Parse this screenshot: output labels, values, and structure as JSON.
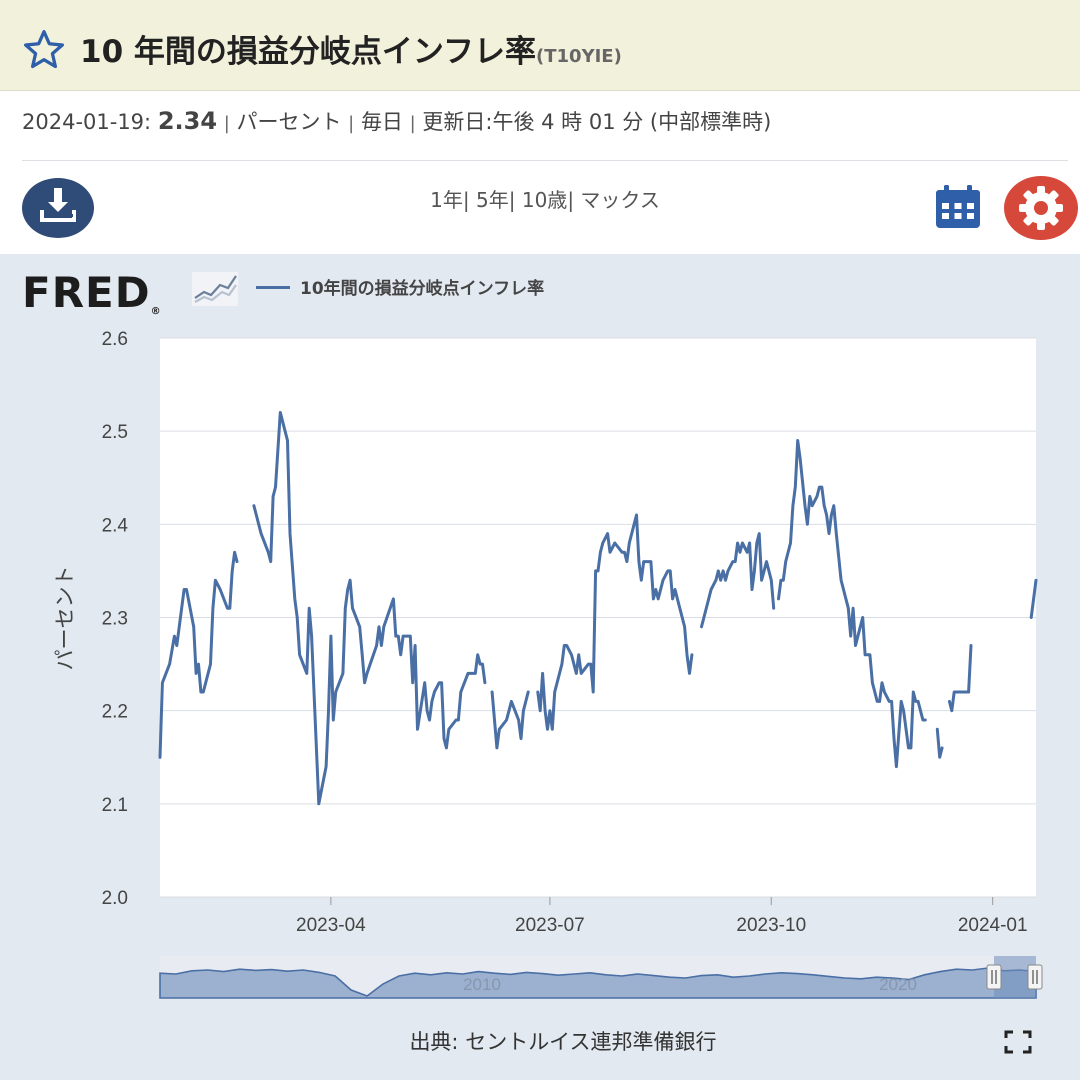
{
  "header": {
    "title": "10 年間の損益分岐点インフレ率",
    "series_code": "(T10YIE)"
  },
  "meta": {
    "date": "2024-01-19:",
    "value": "2.34",
    "units": "パーセント",
    "frequency": "毎日",
    "updated": "更新日:午後 4 時 01 分 (中部標準時)"
  },
  "toolbar": {
    "ranges": [
      "1年",
      "5年",
      "10歳",
      "マックス"
    ]
  },
  "chart_legend": "10年間の損益分岐点インフレ率",
  "source_text": "出典: セントルイス連邦準備銀行",
  "chart_data": {
    "type": "line",
    "ylabel": "パーセント",
    "ylim": [
      2.0,
      2.6
    ],
    "yticks": [
      "2.6",
      "2.5",
      "2.4",
      "2.3",
      "2.2",
      "2.1",
      "2.0"
    ],
    "xticks": [
      "2023-04",
      "2023-07",
      "2023-10",
      "2024-01"
    ],
    "x_range": [
      "2023-01-20",
      "2024-01-19"
    ],
    "grid": true,
    "series": [
      {
        "name": "10年間の損益分岐点インフレ率",
        "color": "#4a6fa5",
        "points": [
          [
            "2023-01-20",
            2.15
          ],
          [
            "2023-01-21",
            2.23
          ],
          [
            "2023-01-24",
            2.25
          ],
          [
            "2023-01-26",
            2.28
          ],
          [
            "2023-01-27",
            2.27
          ],
          [
            "2023-01-30",
            2.33
          ],
          [
            "2023-01-31",
            2.33
          ],
          [
            "2023-02-03",
            2.29
          ],
          [
            "2023-02-04",
            2.24
          ],
          [
            "2023-02-05",
            2.25
          ],
          [
            "2023-02-06",
            2.22
          ],
          [
            "2023-02-07",
            2.22
          ],
          [
            "2023-02-10",
            2.25
          ],
          [
            "2023-02-11",
            2.31
          ],
          [
            "2023-02-12",
            2.34
          ],
          [
            "2023-02-14",
            2.33
          ],
          [
            "2023-02-17",
            2.31
          ],
          [
            "2023-02-18",
            2.31
          ],
          [
            "2023-02-19",
            2.35
          ],
          [
            "2023-02-20",
            2.37
          ],
          [
            "2023-02-21",
            2.36
          ],
          null,
          [
            "2023-02-28",
            2.42
          ],
          [
            "2023-03-01",
            2.41
          ],
          [
            "2023-03-03",
            2.39
          ],
          [
            "2023-03-06",
            2.37
          ],
          [
            "2023-03-07",
            2.36
          ],
          [
            "2023-03-08",
            2.43
          ],
          [
            "2023-03-09",
            2.44
          ],
          [
            "2023-03-10",
            2.48
          ],
          [
            "2023-03-11",
            2.52
          ],
          [
            "2023-03-14",
            2.49
          ],
          [
            "2023-03-15",
            2.39
          ],
          [
            "2023-03-17",
            2.32
          ],
          [
            "2023-03-18",
            2.3
          ],
          [
            "2023-03-19",
            2.26
          ],
          [
            "2023-03-22",
            2.24
          ],
          [
            "2023-03-23",
            2.31
          ],
          [
            "2023-03-24",
            2.28
          ],
          [
            "2023-03-27",
            2.1
          ],
          [
            "2023-03-30",
            2.14
          ],
          [
            "2023-03-31",
            2.2
          ],
          [
            "2023-04-01",
            2.28
          ],
          [
            "2023-04-02",
            2.19
          ],
          [
            "2023-04-03",
            2.22
          ],
          [
            "2023-04-06",
            2.24
          ],
          [
            "2023-04-07",
            2.31
          ],
          [
            "2023-04-08",
            2.33
          ],
          [
            "2023-04-09",
            2.34
          ],
          [
            "2023-04-10",
            2.31
          ],
          [
            "2023-04-13",
            2.29
          ],
          [
            "2023-04-14",
            2.26
          ],
          [
            "2023-04-15",
            2.23
          ],
          [
            "2023-04-16",
            2.24
          ],
          [
            "2023-04-20",
            2.27
          ],
          [
            "2023-04-21",
            2.29
          ],
          [
            "2023-04-22",
            2.27
          ],
          [
            "2023-04-23",
            2.29
          ],
          [
            "2023-04-27",
            2.32
          ],
          [
            "2023-04-28",
            2.28
          ],
          [
            "2023-04-29",
            2.28
          ],
          [
            "2023-04-30",
            2.26
          ],
          [
            "2023-05-01",
            2.28
          ],
          [
            "2023-05-04",
            2.28
          ],
          [
            "2023-05-05",
            2.23
          ],
          [
            "2023-05-06",
            2.27
          ],
          [
            "2023-05-07",
            2.18
          ],
          [
            "2023-05-10",
            2.23
          ],
          [
            "2023-05-11",
            2.2
          ],
          [
            "2023-05-12",
            2.19
          ],
          [
            "2023-05-13",
            2.21
          ],
          [
            "2023-05-14",
            2.22
          ],
          [
            "2023-05-16",
            2.23
          ],
          [
            "2023-05-17",
            2.23
          ],
          [
            "2023-05-18",
            2.17
          ],
          [
            "2023-05-19",
            2.16
          ],
          [
            "2023-05-20",
            2.18
          ],
          [
            "2023-05-23",
            2.19
          ],
          [
            "2023-05-24",
            2.19
          ],
          [
            "2023-05-25",
            2.22
          ],
          [
            "2023-05-28",
            2.24
          ],
          [
            "2023-05-29",
            2.24
          ],
          [
            "2023-05-31",
            2.24
          ],
          [
            "2023-06-01",
            2.26
          ],
          [
            "2023-06-02",
            2.25
          ],
          [
            "2023-06-03",
            2.25
          ],
          [
            "2023-06-04",
            2.23
          ],
          null,
          [
            "2023-06-07",
            2.22
          ],
          [
            "2023-06-08",
            2.19
          ],
          [
            "2023-06-09",
            2.16
          ],
          [
            "2023-06-10",
            2.18
          ],
          [
            "2023-06-13",
            2.19
          ],
          [
            "2023-06-14",
            2.2
          ],
          [
            "2023-06-15",
            2.21
          ],
          [
            "2023-06-18",
            2.19
          ],
          [
            "2023-06-19",
            2.17
          ],
          [
            "2023-06-20",
            2.2
          ],
          [
            "2023-06-21",
            2.21
          ],
          [
            "2023-06-22",
            2.22
          ],
          null,
          [
            "2023-06-26",
            2.22
          ],
          [
            "2023-06-27",
            2.2
          ],
          [
            "2023-06-28",
            2.24
          ],
          [
            "2023-06-29",
            2.2
          ],
          [
            "2023-06-30",
            2.18
          ],
          [
            "2023-07-01",
            2.2
          ],
          [
            "2023-07-02",
            2.18
          ],
          [
            "2023-07-03",
            2.22
          ],
          [
            "2023-07-06",
            2.25
          ],
          [
            "2023-07-07",
            2.27
          ],
          [
            "2023-07-08",
            2.27
          ],
          [
            "2023-07-10",
            2.26
          ],
          [
            "2023-07-11",
            2.25
          ],
          [
            "2023-07-12",
            2.24
          ],
          [
            "2023-07-13",
            2.26
          ],
          [
            "2023-07-14",
            2.24
          ],
          [
            "2023-07-17",
            2.25
          ],
          [
            "2023-07-18",
            2.25
          ],
          [
            "2023-07-19",
            2.22
          ],
          [
            "2023-07-20",
            2.35
          ],
          [
            "2023-07-21",
            2.35
          ],
          [
            "2023-07-22",
            2.37
          ],
          [
            "2023-07-23",
            2.38
          ],
          [
            "2023-07-25",
            2.39
          ],
          [
            "2023-07-26",
            2.37
          ],
          [
            "2023-07-28",
            2.38
          ],
          [
            "2023-07-31",
            2.37
          ],
          [
            "2023-08-01",
            2.37
          ],
          [
            "2023-08-02",
            2.36
          ],
          [
            "2023-08-03",
            2.38
          ],
          [
            "2023-08-04",
            2.39
          ],
          [
            "2023-08-06",
            2.41
          ],
          [
            "2023-08-07",
            2.36
          ],
          [
            "2023-08-08",
            2.34
          ],
          [
            "2023-08-09",
            2.36
          ],
          [
            "2023-08-10",
            2.36
          ],
          [
            "2023-08-12",
            2.36
          ],
          [
            "2023-08-13",
            2.32
          ],
          [
            "2023-08-14",
            2.33
          ],
          [
            "2023-08-15",
            2.32
          ],
          [
            "2023-08-16",
            2.33
          ],
          [
            "2023-08-17",
            2.34
          ],
          [
            "2023-08-19",
            2.35
          ],
          [
            "2023-08-20",
            2.35
          ],
          [
            "2023-08-21",
            2.32
          ],
          [
            "2023-08-22",
            2.33
          ],
          [
            "2023-08-23",
            2.32
          ],
          [
            "2023-08-25",
            2.3
          ],
          [
            "2023-08-26",
            2.29
          ],
          [
            "2023-08-27",
            2.26
          ],
          [
            "2023-08-28",
            2.24
          ],
          [
            "2023-08-29",
            2.26
          ],
          null,
          [
            "2023-09-02",
            2.29
          ],
          [
            "2023-09-03",
            2.3
          ],
          [
            "2023-09-05",
            2.32
          ],
          [
            "2023-09-06",
            2.33
          ],
          [
            "2023-09-08",
            2.34
          ],
          [
            "2023-09-09",
            2.35
          ],
          [
            "2023-09-10",
            2.34
          ],
          [
            "2023-09-11",
            2.35
          ],
          [
            "2023-09-12",
            2.34
          ],
          [
            "2023-09-13",
            2.35
          ],
          [
            "2023-09-15",
            2.36
          ],
          [
            "2023-09-16",
            2.36
          ],
          [
            "2023-09-17",
            2.38
          ],
          [
            "2023-09-18",
            2.37
          ],
          [
            "2023-09-19",
            2.38
          ],
          [
            "2023-09-21",
            2.37
          ],
          [
            "2023-09-22",
            2.38
          ],
          [
            "2023-09-23",
            2.33
          ],
          [
            "2023-09-24",
            2.35
          ],
          [
            "2023-09-25",
            2.38
          ],
          [
            "2023-09-26",
            2.39
          ],
          [
            "2023-09-27",
            2.34
          ],
          [
            "2023-09-28",
            2.35
          ],
          [
            "2023-09-29",
            2.36
          ],
          [
            "2023-09-30",
            2.35
          ],
          [
            "2023-10-01",
            2.34
          ],
          [
            "2023-10-02",
            2.31
          ],
          null,
          [
            "2023-10-04",
            2.32
          ],
          [
            "2023-10-05",
            2.34
          ],
          [
            "2023-10-06",
            2.34
          ],
          [
            "2023-10-07",
            2.36
          ],
          [
            "2023-10-09",
            2.38
          ],
          [
            "2023-10-10",
            2.42
          ],
          [
            "2023-10-11",
            2.44
          ],
          [
            "2023-10-12",
            2.49
          ],
          [
            "2023-10-13",
            2.47
          ],
          [
            "2023-10-15",
            2.42
          ],
          [
            "2023-10-16",
            2.4
          ],
          [
            "2023-10-17",
            2.43
          ],
          [
            "2023-10-18",
            2.42
          ],
          [
            "2023-10-20",
            2.43
          ],
          [
            "2023-10-21",
            2.44
          ],
          [
            "2023-10-22",
            2.44
          ],
          [
            "2023-10-23",
            2.42
          ],
          [
            "2023-10-24",
            2.41
          ],
          [
            "2023-10-25",
            2.39
          ],
          [
            "2023-10-26",
            2.41
          ],
          [
            "2023-10-27",
            2.42
          ],
          [
            "2023-10-28",
            2.39
          ],
          [
            "2023-10-30",
            2.34
          ],
          [
            "2023-10-31",
            2.33
          ],
          [
            "2023-11-01",
            2.32
          ],
          [
            "2023-11-02",
            2.31
          ],
          [
            "2023-11-03",
            2.28
          ],
          [
            "2023-11-04",
            2.31
          ],
          [
            "2023-11-05",
            2.27
          ],
          [
            "2023-11-06",
            2.28
          ],
          [
            "2023-11-07",
            2.29
          ],
          [
            "2023-11-08",
            2.3
          ],
          [
            "2023-11-09",
            2.26
          ],
          [
            "2023-11-11",
            2.26
          ],
          [
            "2023-11-12",
            2.23
          ],
          [
            "2023-11-14",
            2.21
          ],
          [
            "2023-11-15",
            2.21
          ],
          [
            "2023-11-16",
            2.23
          ],
          [
            "2023-11-17",
            2.22
          ],
          [
            "2023-11-19",
            2.21
          ],
          [
            "2023-11-20",
            2.21
          ],
          [
            "2023-11-21",
            2.17
          ],
          [
            "2023-11-22",
            2.14
          ],
          [
            "2023-11-24",
            2.21
          ],
          [
            "2023-11-25",
            2.2
          ],
          [
            "2023-11-27",
            2.16
          ],
          [
            "2023-11-28",
            2.16
          ],
          [
            "2023-11-29",
            2.22
          ],
          [
            "2023-11-30",
            2.21
          ],
          [
            "2023-12-01",
            2.21
          ],
          [
            "2023-12-02",
            2.2
          ],
          [
            "2023-12-03",
            2.19
          ],
          [
            "2023-12-04",
            2.19
          ],
          null,
          [
            "2023-12-09",
            2.18
          ],
          [
            "2023-12-10",
            2.15
          ],
          [
            "2023-12-11",
            2.16
          ],
          null,
          [
            "2023-12-14",
            2.21
          ],
          [
            "2023-12-15",
            2.2
          ],
          [
            "2023-12-16",
            2.22
          ],
          [
            "2023-12-18",
            2.22
          ],
          [
            "2023-12-21",
            2.22
          ],
          [
            "2023-12-22",
            2.22
          ],
          [
            "2023-12-23",
            2.27
          ],
          null,
          [
            "2024-01-17",
            2.3
          ],
          [
            "2024-01-18",
            2.32
          ],
          [
            "2024-01-19",
            2.34
          ]
        ]
      }
    ],
    "navigator": {
      "labels": [
        "2010",
        "2020"
      ]
    }
  }
}
